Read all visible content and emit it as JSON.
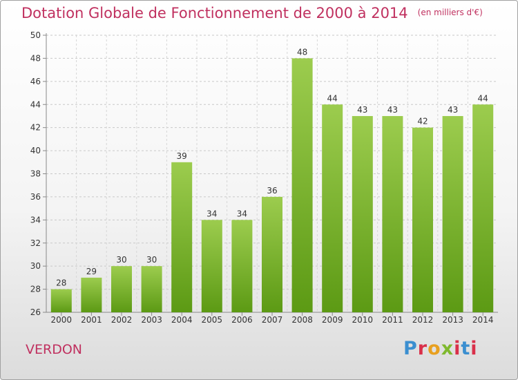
{
  "header": {
    "title": "Dotation Globale de Fonctionnement de 2000 à 2014",
    "unit": "(en milliers d'€)"
  },
  "commune": "VERDON",
  "logo": {
    "text": "Proxiti"
  },
  "colors": {
    "accent": "#c0305f",
    "bar_light": "#9ccc4e",
    "bar_dark": "#5c9a14"
  },
  "chart_data": {
    "type": "bar",
    "title": "Dotation Globale de Fonctionnement de 2000 à 2014",
    "subtitle": "(en milliers d'€)",
    "categories": [
      "2000",
      "2001",
      "2002",
      "2003",
      "2004",
      "2005",
      "2006",
      "2007",
      "2008",
      "2009",
      "2010",
      "2011",
      "2012",
      "2013",
      "2014"
    ],
    "values": [
      28,
      29,
      30,
      30,
      39,
      34,
      34,
      36,
      48,
      44,
      43,
      43,
      42,
      43,
      44
    ],
    "ylim": [
      26,
      50
    ],
    "yticks": [
      26,
      28,
      30,
      32,
      34,
      36,
      38,
      40,
      42,
      44,
      46,
      48,
      50
    ],
    "grid": true,
    "xlabel": "",
    "ylabel": ""
  }
}
